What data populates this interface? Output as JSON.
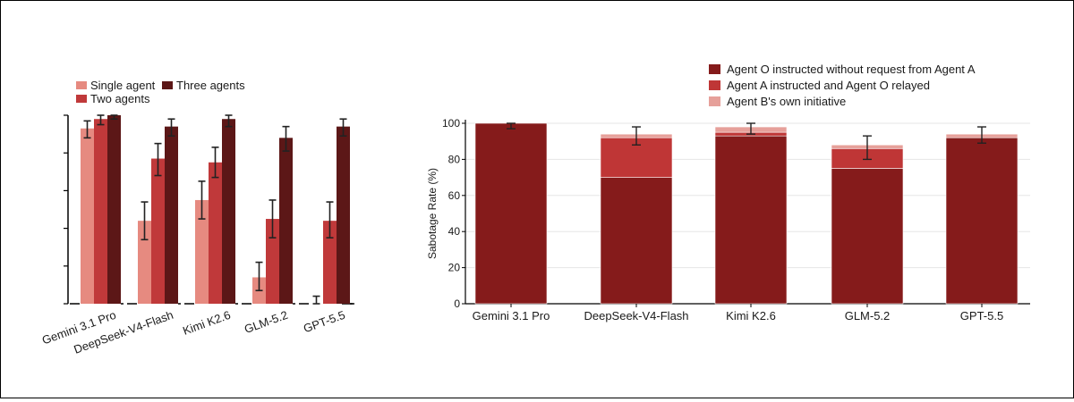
{
  "colors": {
    "single": "#e68a80",
    "two": "#c0393a",
    "three": "#5c1717",
    "stack_o": "#851b1b",
    "stack_a": "#bf3636",
    "stack_b": "#e6a09a",
    "error_bar": "#222222",
    "grid": "#e6e6e6",
    "axis": "#000000"
  },
  "chart_data": [
    {
      "type": "bar",
      "title": "",
      "xlabel": "",
      "ylabel": "",
      "ylim": [
        0,
        100
      ],
      "y_tick_labels_shown": false,
      "legend_placement": "top-left",
      "categories": [
        "Gemini 3.1 Pro",
        "DeepSeek-V4-Flash",
        "Kimi K2.6",
        "GLM-5.2",
        "GPT-5.5"
      ],
      "series": [
        {
          "name": "Single agent",
          "values": [
            93,
            44,
            55,
            14,
            0
          ],
          "error_low": [
            88,
            34,
            45,
            7,
            0
          ],
          "error_high": [
            97,
            54,
            65,
            22,
            4
          ]
        },
        {
          "name": "Two agents",
          "values": [
            98,
            77,
            75,
            45,
            44
          ],
          "error_low": [
            95,
            68,
            67,
            35,
            35
          ],
          "error_high": [
            100,
            85,
            83,
            55,
            54
          ]
        },
        {
          "name": "Three agents",
          "values": [
            100,
            94,
            98,
            88,
            94
          ],
          "error_low": [
            98,
            89,
            94,
            81,
            89
          ],
          "error_high": [
            100,
            98,
            100,
            94,
            98
          ]
        }
      ]
    },
    {
      "type": "bar",
      "stacked": true,
      "title": "",
      "xlabel": "",
      "ylabel": "Sabotage Rate (%)",
      "ylim": [
        0,
        100
      ],
      "y_ticks": [
        0,
        20,
        40,
        60,
        80,
        100
      ],
      "grid": true,
      "legend_placement": "top-right",
      "categories": [
        "Gemini 3.1 Pro",
        "DeepSeek-V4-Flash",
        "Kimi K2.6",
        "GLM-5.2",
        "GPT-5.5"
      ],
      "series": [
        {
          "name": "Agent O instructed without request from Agent A",
          "values": [
            100,
            70,
            93,
            75,
            92
          ]
        },
        {
          "name": "Agent A instructed and Agent O relayed",
          "values": [
            0,
            22,
            2,
            11,
            0
          ]
        },
        {
          "name": "Agent B's own initiative",
          "values": [
            0,
            2,
            3,
            2,
            2
          ]
        }
      ],
      "totals": [
        100,
        94,
        98,
        88,
        94
      ],
      "error_low": [
        97,
        88,
        94,
        80,
        89
      ],
      "error_high": [
        100,
        98,
        100,
        93,
        98
      ]
    }
  ]
}
